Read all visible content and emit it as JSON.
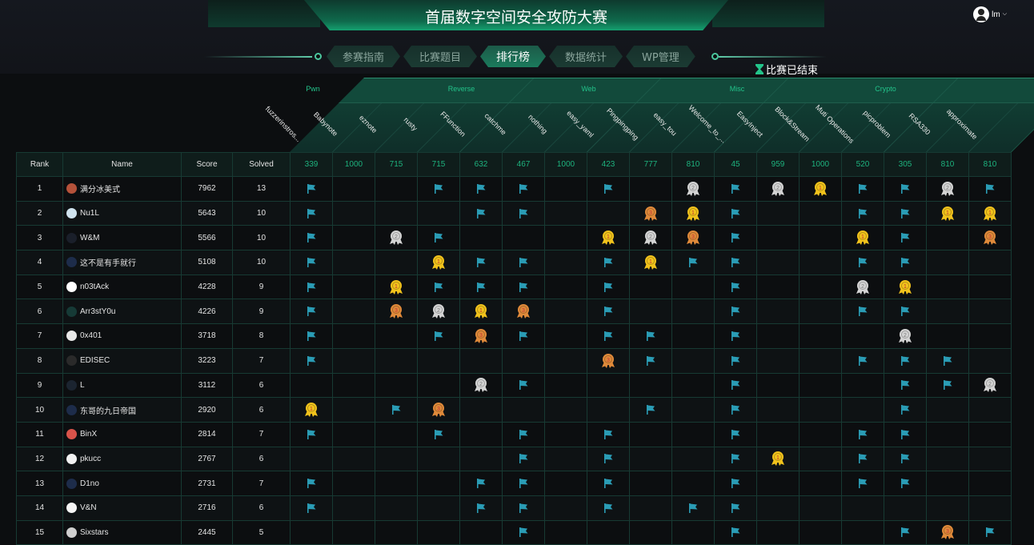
{
  "header": {
    "title": "首届数字空间安全攻防大赛",
    "user": "lm",
    "status": "比赛已结束"
  },
  "nav": [
    {
      "label": "参赛指南"
    },
    {
      "label": "比赛题目"
    },
    {
      "label": "排行榜",
      "active": true
    },
    {
      "label": "数据统计"
    },
    {
      "label": "WP管理"
    }
  ],
  "colors": {
    "flag": "#2a9cb5",
    "gold": "#f2c31c",
    "silver": "#d4d4d4",
    "bronze": "#e08a3a",
    "accent": "#1db37e"
  },
  "table": {
    "headers": {
      "rank": "Rank",
      "name": "Name",
      "score": "Score",
      "solved": "Solved"
    },
    "categories": [
      {
        "name": "Pwn",
        "count": 4
      },
      {
        "name": "Reverse",
        "count": 3
      },
      {
        "name": "Web",
        "count": 3
      },
      {
        "name": "Misc",
        "count": 4
      },
      {
        "name": "Crypto",
        "count": 3
      }
    ],
    "challenges": [
      {
        "name": "fuzzerinstros...",
        "points": "339"
      },
      {
        "name": "Babynote",
        "points": "1000"
      },
      {
        "name": "eznote",
        "points": "715"
      },
      {
        "name": "rusty",
        "points": "715"
      },
      {
        "name": "FFunction",
        "points": "632"
      },
      {
        "name": "catchme",
        "points": "467"
      },
      {
        "name": "nothing",
        "points": "1000"
      },
      {
        "name": "easy_yaml",
        "points": "423"
      },
      {
        "name": "Pingpingping",
        "points": "777"
      },
      {
        "name": "easy_tou",
        "points": "810"
      },
      {
        "name": "Welcome_to_...",
        "points": "45"
      },
      {
        "name": "EasyInject",
        "points": "959"
      },
      {
        "name": "Block&Stream",
        "points": "1000"
      },
      {
        "name": "Muti Operations",
        "points": "520"
      },
      {
        "name": "picproblem",
        "points": "305"
      },
      {
        "name": "RSA330",
        "points": "810"
      },
      {
        "name": "approximate",
        "points": "810"
      }
    ],
    "legend": {
      "F": "solved",
      "1": "first blood",
      "2": "second blood",
      "3": "third blood"
    },
    "rows": [
      {
        "rank": "1",
        "name": "满分冰美式",
        "avatar": "#b5523a",
        "score": "7962",
        "solved": "13",
        "cells": [
          "F",
          "",
          "",
          "F",
          "F",
          "F",
          "",
          "F",
          "",
          "2",
          "F",
          "2",
          "1",
          "F",
          "F",
          "2",
          "F"
        ]
      },
      {
        "rank": "2",
        "name": "Nu1L",
        "avatar": "#cfe3ee",
        "score": "5643",
        "solved": "10",
        "cells": [
          "F",
          "",
          "",
          "",
          "F",
          "F",
          "",
          "",
          "3",
          "1",
          "F",
          "",
          "",
          "F",
          "F",
          "1",
          "1"
        ]
      },
      {
        "rank": "3",
        "name": "W&M",
        "avatar": "#1a1f2a",
        "score": "5566",
        "solved": "10",
        "cells": [
          "F",
          "",
          "2",
          "F",
          "",
          "",
          "",
          "1",
          "2",
          "3",
          "F",
          "",
          "",
          "1",
          "F",
          "",
          "3"
        ]
      },
      {
        "rank": "4",
        "name": "这不是有手就行",
        "avatar": "#1d2c4a",
        "score": "5108",
        "solved": "10",
        "cells": [
          "F",
          "",
          "",
          "1",
          "F",
          "F",
          "",
          "F",
          "1",
          "F",
          "F",
          "",
          "",
          "F",
          "F",
          "",
          ""
        ]
      },
      {
        "rank": "5",
        "name": "n03tAck",
        "avatar": "#ffffff",
        "score": "4228",
        "solved": "9",
        "cells": [
          "F",
          "",
          "1",
          "F",
          "F",
          "F",
          "",
          "F",
          "",
          "",
          "F",
          "",
          "",
          "2",
          "1",
          "",
          ""
        ]
      },
      {
        "rank": "6",
        "name": "Arr3stY0u",
        "avatar": "#163a36",
        "score": "4226",
        "solved": "9",
        "cells": [
          "F",
          "",
          "3",
          "2",
          "1",
          "3",
          "",
          "F",
          "",
          "",
          "F",
          "",
          "",
          "F",
          "F",
          "",
          ""
        ]
      },
      {
        "rank": "7",
        "name": "0x401",
        "avatar": "#e8e8e8",
        "score": "3718",
        "solved": "8",
        "cells": [
          "F",
          "",
          "",
          "F",
          "3",
          "F",
          "",
          "F",
          "F",
          "",
          "F",
          "",
          "",
          "",
          "2",
          "",
          ""
        ]
      },
      {
        "rank": "8",
        "name": "EDISEC",
        "avatar": "#2a2a2a",
        "score": "3223",
        "solved": "7",
        "cells": [
          "F",
          "",
          "",
          "",
          "",
          "",
          "",
          "3",
          "F",
          "",
          "F",
          "",
          "",
          "F",
          "F",
          "F",
          ""
        ]
      },
      {
        "rank": "9",
        "name": "L",
        "avatar": "#1b2430",
        "score": "3112",
        "solved": "6",
        "cells": [
          "",
          "",
          "",
          "",
          "2",
          "F",
          "",
          "",
          "",
          "",
          "F",
          "",
          "",
          "",
          "F",
          "F",
          "2"
        ]
      },
      {
        "rank": "10",
        "name": "东哥的九日帝国",
        "avatar": "#1d2c4a",
        "score": "2920",
        "solved": "6",
        "cells": [
          "1",
          "",
          "F",
          "3",
          "",
          "",
          "",
          "",
          "F",
          "",
          "F",
          "",
          "",
          "",
          "F",
          "",
          ""
        ]
      },
      {
        "rank": "11",
        "name": "BinX",
        "avatar": "#d9534a",
        "score": "2814",
        "solved": "7",
        "cells": [
          "F",
          "",
          "",
          "F",
          "",
          "F",
          "",
          "F",
          "",
          "",
          "F",
          "",
          "",
          "F",
          "F",
          "",
          ""
        ]
      },
      {
        "rank": "12",
        "name": "pkucc",
        "avatar": "#f2f2f2",
        "score": "2767",
        "solved": "6",
        "cells": [
          "",
          "",
          "",
          "",
          "",
          "F",
          "",
          "F",
          "",
          "",
          "F",
          "1",
          "",
          "F",
          "F",
          "",
          ""
        ]
      },
      {
        "rank": "13",
        "name": "D1no",
        "avatar": "#1d2c4a",
        "score": "2731",
        "solved": "7",
        "cells": [
          "F",
          "",
          "",
          "",
          "F",
          "F",
          "",
          "F",
          "",
          "",
          "F",
          "",
          "",
          "F",
          "F",
          "",
          ""
        ]
      },
      {
        "rank": "14",
        "name": "V&N",
        "avatar": "#f5f5f5",
        "score": "2716",
        "solved": "6",
        "cells": [
          "F",
          "",
          "",
          "",
          "F",
          "F",
          "",
          "F",
          "",
          "F",
          "F",
          "",
          "",
          "",
          "",
          "",
          ""
        ]
      },
      {
        "rank": "15",
        "name": "Sixstars",
        "avatar": "#cfcfcf",
        "score": "2445",
        "solved": "5",
        "cells": [
          "",
          "",
          "",
          "",
          "",
          "F",
          "",
          "",
          "",
          "",
          "F",
          "",
          "",
          "",
          "F",
          "3",
          "F"
        ]
      }
    ]
  }
}
